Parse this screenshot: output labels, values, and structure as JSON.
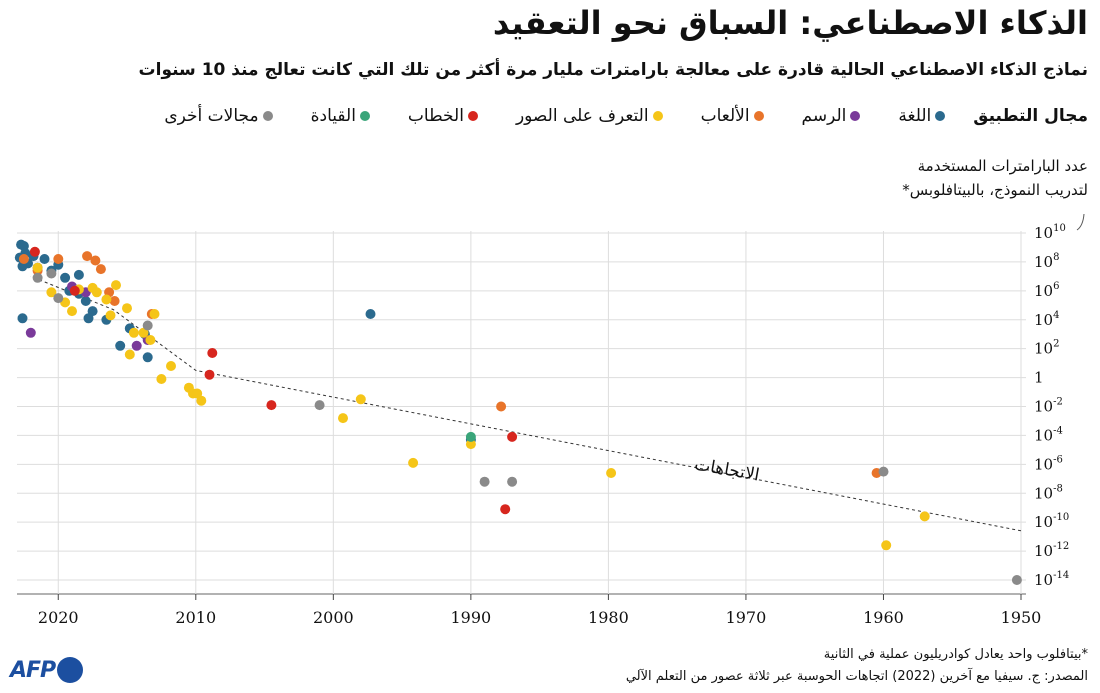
{
  "header": {
    "title": "الذكاء الاصطناعي: السباق نحو التعقيد",
    "subtitle": "نماذج الذكاء الاصطناعي الحالية قادرة على معالجة بارامترات مليار مرة أكثر من تلك التي كانت تعالج منذ 10 سنوات"
  },
  "legend": {
    "title": "مجال التطبيق",
    "items": [
      {
        "label": "اللغة",
        "color": "#2b6a8e"
      },
      {
        "label": "الرسم",
        "color": "#7a3a9a"
      },
      {
        "label": "الألعاب",
        "color": "#e8742a"
      },
      {
        "label": "التعرف على الصور",
        "color": "#f5c518"
      },
      {
        "label": "الخطاب",
        "color": "#d7261e"
      },
      {
        "label": "القيادة",
        "color": "#3aa57a"
      },
      {
        "label": "مجالات أخرى",
        "color": "#8a8a8a"
      }
    ]
  },
  "footer": {
    "footnote": "*بيتافلوب واحد يعادل كوادريليون عملية في الثانية",
    "source": "المصدر: ج. سيفيا مع آخرين (2022) اتجاهات الحوسبة عبر ثلاثة عصور من التعلم الآلي",
    "logo": "AFP"
  },
  "chart_data": {
    "type": "scatter",
    "ylabel_line1": "عدد البارامترات المستخدمة",
    "ylabel_line2": "لتدريب النموذج، بالبيتافلوبس*",
    "x_axis": {
      "min": 1950,
      "max": 2023,
      "reversed": true,
      "ticks": [
        2020,
        2010,
        2000,
        1990,
        1980,
        1970,
        1960,
        1950
      ]
    },
    "y_axis": {
      "scale": "log10",
      "min_exp": -14,
      "max_exp": 10,
      "ticks": [
        {
          "exp": 10,
          "base": "10",
          "sup": "10"
        },
        {
          "exp": 8,
          "base": "10",
          "sup": "8"
        },
        {
          "exp": 6,
          "base": "10",
          "sup": "6"
        },
        {
          "exp": 4,
          "base": "10",
          "sup": "4"
        },
        {
          "exp": 2,
          "base": "10",
          "sup": "2"
        },
        {
          "exp": 0,
          "base": "1",
          "sup": ""
        },
        {
          "exp": -2,
          "base": "10",
          "sup": "-2"
        },
        {
          "exp": -4,
          "base": "10",
          "sup": "-4"
        },
        {
          "exp": -6,
          "base": "10",
          "sup": "-6"
        },
        {
          "exp": -8,
          "base": "10",
          "sup": "-8"
        },
        {
          "exp": -10,
          "base": "10",
          "sup": "-10"
        },
        {
          "exp": -12,
          "base": "10",
          "sup": "-12"
        },
        {
          "exp": -14,
          "base": "10",
          "sup": "-14"
        }
      ]
    },
    "trend": {
      "label": "الاتجاهات",
      "points": [
        [
          1950,
          -10.6
        ],
        [
          2010,
          0.5
        ],
        [
          2016,
          4.7
        ],
        [
          2022,
          7.0
        ]
      ]
    },
    "series": [
      {
        "name": "اللغة",
        "color": "#2b6a8e",
        "points": [
          [
            2022.7,
            9.2
          ],
          [
            2022.5,
            9.1
          ],
          [
            2022.4,
            8.6
          ],
          [
            2022.8,
            8.3
          ],
          [
            2022.2,
            7.9
          ],
          [
            2022.6,
            7.7
          ],
          [
            2021.8,
            8.4
          ],
          [
            2021.5,
            7.6
          ],
          [
            2021.0,
            8.2
          ],
          [
            2020.5,
            7.4
          ],
          [
            2020.0,
            7.8
          ],
          [
            2019.5,
            6.9
          ],
          [
            2019.2,
            6.0
          ],
          [
            2018.5,
            5.8
          ],
          [
            2018.0,
            5.3
          ],
          [
            2017.8,
            4.1
          ],
          [
            2022.6,
            4.1
          ],
          [
            2018.5,
            7.1
          ],
          [
            2017.5,
            4.6
          ],
          [
            2016.5,
            4.0
          ],
          [
            2015.5,
            2.2
          ],
          [
            2014.8,
            3.4
          ],
          [
            2013.7,
            3.0
          ],
          [
            2013.5,
            1.4
          ],
          [
            1997.3,
            4.4
          ],
          [
            1990.0,
            -4.3
          ]
        ]
      },
      {
        "name": "الرسم",
        "color": "#7a3a9a",
        "points": [
          [
            2022.0,
            3.1
          ],
          [
            2019.0,
            6.3
          ],
          [
            2018.0,
            5.9
          ],
          [
            2014.3,
            2.2
          ],
          [
            2013.5,
            2.6
          ]
        ]
      },
      {
        "name": "الألعاب",
        "color": "#e8742a",
        "points": [
          [
            2022.5,
            8.2
          ],
          [
            2021.5,
            7.4
          ],
          [
            2020.0,
            8.2
          ],
          [
            2017.9,
            8.4
          ],
          [
            2017.3,
            8.1
          ],
          [
            2016.9,
            7.5
          ],
          [
            2016.3,
            5.9
          ],
          [
            2015.9,
            5.3
          ],
          [
            2013.2,
            4.4
          ],
          [
            1987.8,
            -2.0
          ],
          [
            1960.5,
            -6.6
          ]
        ]
      },
      {
        "name": "التعرف على الصور",
        "color": "#f5c518",
        "points": [
          [
            2021.5,
            7.6
          ],
          [
            2019.5,
            5.2
          ],
          [
            2019.0,
            4.6
          ],
          [
            2018.5,
            6.1
          ],
          [
            2017.5,
            6.2
          ],
          [
            2017.2,
            5.9
          ],
          [
            2016.5,
            5.4
          ],
          [
            2016.2,
            4.3
          ],
          [
            2015.8,
            6.4
          ],
          [
            2015.0,
            4.8
          ],
          [
            2014.5,
            3.1
          ],
          [
            2013.8,
            3.1
          ],
          [
            2013.3,
            2.6
          ],
          [
            2012.5,
            -0.1
          ],
          [
            2011.8,
            0.8
          ],
          [
            2010.5,
            -0.7
          ],
          [
            2010.2,
            -1.1
          ],
          [
            2013.0,
            4.4
          ],
          [
            2020.5,
            5.9
          ],
          [
            2014.8,
            1.6
          ],
          [
            2009.9,
            -1.1
          ],
          [
            2009.6,
            -1.6
          ],
          [
            1998.0,
            -1.5
          ],
          [
            1999.3,
            -2.8
          ],
          [
            1994.2,
            -5.9
          ],
          [
            1990.0,
            -4.6
          ],
          [
            1979.8,
            -6.6
          ],
          [
            1957.0,
            -9.6
          ],
          [
            1959.8,
            -11.6
          ]
        ]
      },
      {
        "name": "الخطاب",
        "color": "#d7261e",
        "points": [
          [
            2021.7,
            8.7
          ],
          [
            2018.8,
            6.0
          ],
          [
            2008.8,
            1.7
          ],
          [
            2009.0,
            0.2
          ],
          [
            2004.5,
            -1.9
          ],
          [
            1987.5,
            -9.1
          ],
          [
            1987.0,
            -4.1
          ]
        ]
      },
      {
        "name": "القيادة",
        "color": "#3aa57a",
        "points": [
          [
            1990.0,
            -4.1
          ]
        ]
      },
      {
        "name": "مجالات أخرى",
        "color": "#8a8a8a",
        "points": [
          [
            2021.5,
            6.9
          ],
          [
            2020.5,
            7.2
          ],
          [
            2020.0,
            5.5
          ],
          [
            2013.5,
            3.6
          ],
          [
            2001.0,
            -1.9
          ],
          [
            1989.0,
            -7.2
          ],
          [
            1987.0,
            -7.2
          ],
          [
            1960.0,
            -6.5
          ],
          [
            1950.3,
            -14.0
          ]
        ]
      }
    ]
  }
}
